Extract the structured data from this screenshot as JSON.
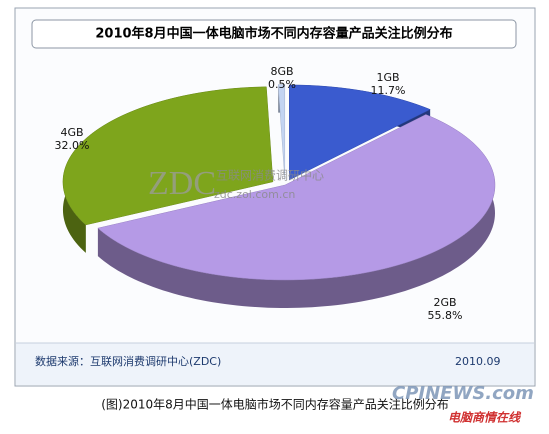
{
  "chart_data": {
    "type": "pie",
    "title": "2010年8月中国一体电脑市场不同内存容量产品关注比例分布",
    "categories": [
      "1GB",
      "2GB",
      "4GB",
      "8GB"
    ],
    "values": [
      11.7,
      55.8,
      32.0,
      0.5
    ],
    "value_labels": [
      "11.7%",
      "55.8%",
      "32.0%",
      "0.5%"
    ],
    "colors": [
      "#3a5bcf",
      "#b59ae6",
      "#7ea51c",
      "#c3d4f2"
    ]
  },
  "watermark": {
    "logo": "ZDC",
    "name": "互联网消费调研中心",
    "url": "zdc.zol.com.cn"
  },
  "source": "数据来源：互联网消费调研中心(ZDC)",
  "date": "2010.09",
  "caption": "(图)2010年8月中国一体电脑市场不同内存容量产品关注比例分布",
  "site_logo": {
    "name": "CPINEWS.com",
    "tagline": "电脑商情在线"
  }
}
